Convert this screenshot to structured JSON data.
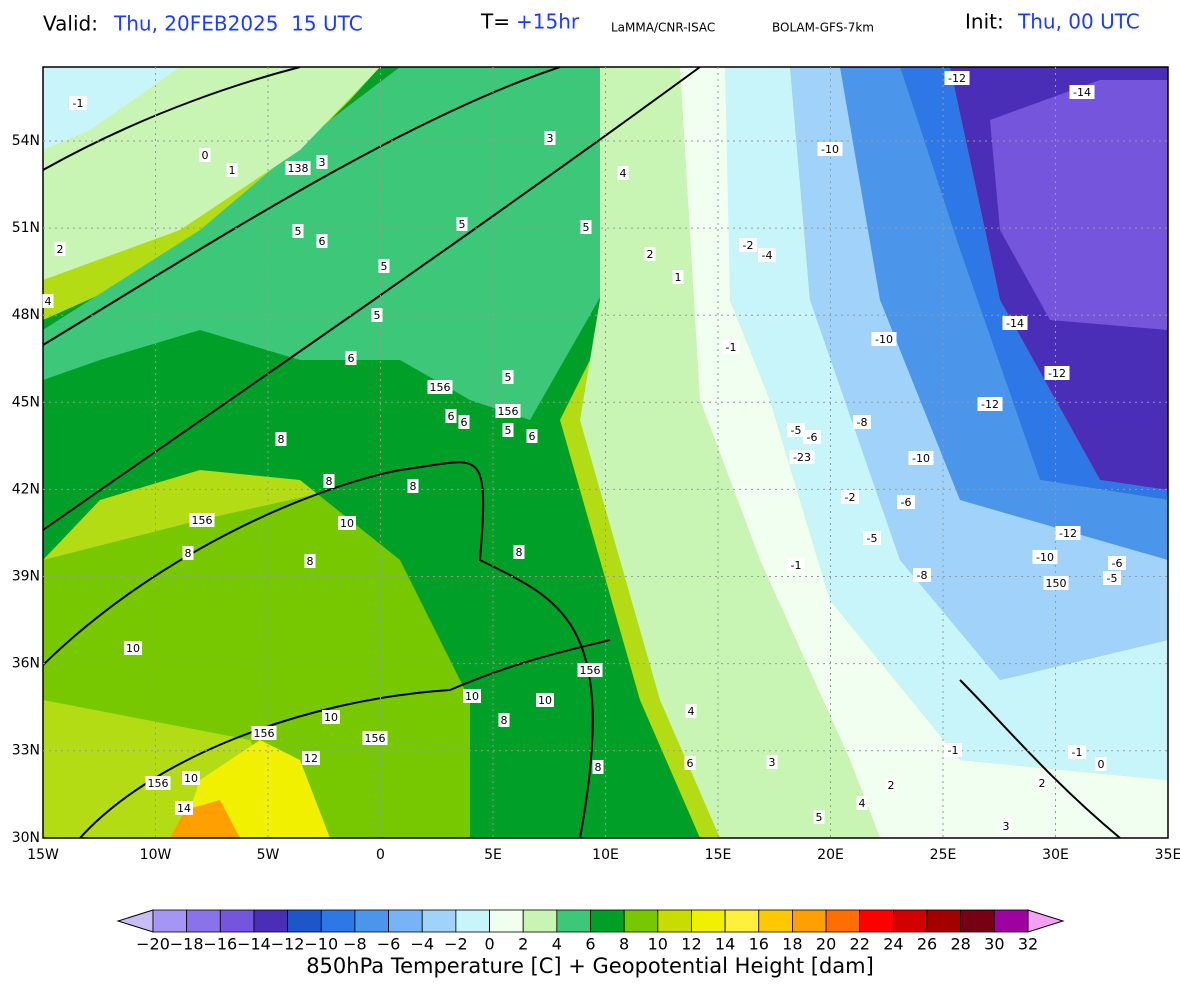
{
  "header": {
    "valid_label": "Valid:",
    "valid_value": "Thu, 20FEB2025  15 UTC",
    "t_label": "T=",
    "t_value": "+15hr",
    "source": "LaMMA/CNR-ISAC",
    "model": "BOLAM-GFS-7km",
    "init_label": "Init:",
    "init_value": "Thu, 00 UTC"
  },
  "map": {
    "lat_ticks": [
      "54N",
      "51N",
      "48N",
      "45N",
      "42N",
      "39N",
      "36N",
      "33N",
      "30N"
    ],
    "lon_ticks": [
      "15W",
      "10W",
      "5W",
      "0",
      "5E",
      "10E",
      "15E",
      "20E",
      "25E",
      "30E",
      "35E"
    ],
    "contour_labels": [
      "-1",
      "-12",
      "-14",
      "0",
      "1",
      "138",
      "3",
      "3",
      "-10",
      "4",
      "2",
      "5",
      "6",
      "5",
      "5",
      "2",
      "1",
      "-2",
      "-4",
      "4",
      "5",
      "5",
      "-14",
      "-10",
      "-1",
      "6",
      "5",
      "156",
      "-12",
      "-12",
      "156",
      "6",
      "6",
      "5",
      "6",
      "-8",
      "-5",
      "-6",
      "8",
      "-23",
      "-10",
      "8",
      "8",
      "156",
      "-2",
      "-6",
      "10",
      "-12",
      "-5",
      "8",
      "8",
      "8",
      "-10",
      "-6",
      "-5",
      "150",
      "-1",
      "-8",
      "10",
      "156",
      "10",
      "10",
      "10",
      "8",
      "4",
      "156",
      "156",
      "12",
      "-1",
      "-1",
      "10",
      "156",
      "8",
      "6",
      "3",
      "14",
      "5",
      "4",
      "2",
      "2",
      "3",
      "0"
    ]
  },
  "colorbar": {
    "labels": [
      "−20",
      "−18",
      "−16",
      "−14",
      "−12",
      "−10",
      "−8",
      "−6",
      "−4",
      "−2",
      "0",
      "2",
      "4",
      "6",
      "8",
      "10",
      "12",
      "14",
      "16",
      "18",
      "20",
      "22",
      "24",
      "26",
      "28",
      "30",
      "32"
    ],
    "colors": [
      "#a596f5",
      "#8a72ea",
      "#7455dc",
      "#4b2eb8",
      "#1e55c8",
      "#2d78e6",
      "#4b96eb",
      "#78b4f5",
      "#a0d2fa",
      "#c8f5fa",
      "#f0fff0",
      "#c8f5b4",
      "#3cc878",
      "#00a028",
      "#78c800",
      "#c8dc00",
      "#f0f000",
      "#fff03c",
      "#ffc800",
      "#ffa000",
      "#ff6e00",
      "#ff0000",
      "#d20000",
      "#a50000",
      "#780014",
      "#a000a0"
    ],
    "under_color": "#c8bef5",
    "over_color": "#f5a0f5",
    "title": "850hPa Temperature [C] + Geopotential Height [dam]"
  }
}
